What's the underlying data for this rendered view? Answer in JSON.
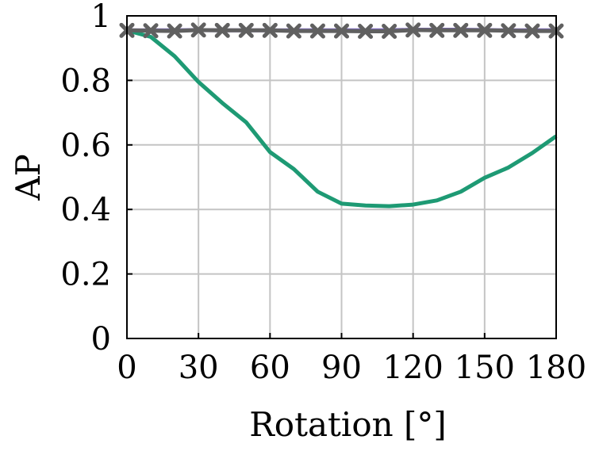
{
  "chart_data": {
    "type": "line",
    "xlabel": "Rotation [°]",
    "ylabel": "AP",
    "xlim": [
      0,
      180
    ],
    "ylim": [
      0,
      1
    ],
    "grid": true,
    "xticks": [
      "0",
      "30",
      "60",
      "90",
      "120",
      "150",
      "180"
    ],
    "yticks": [
      "0",
      "0.2",
      "0.4",
      "0.6",
      "0.8",
      "1"
    ],
    "x": [
      0,
      10,
      20,
      30,
      40,
      50,
      60,
      70,
      80,
      90,
      100,
      110,
      120,
      130,
      140,
      150,
      160,
      170,
      180
    ],
    "series": [
      {
        "color": "#1e9a74",
        "marker": "none",
        "values": [
          0.955,
          0.935,
          0.875,
          0.795,
          0.73,
          0.67,
          0.578,
          0.525,
          0.455,
          0.418,
          0.412,
          0.41,
          0.415,
          0.428,
          0.455,
          0.498,
          0.53,
          0.575,
          0.627
        ]
      },
      {
        "color": "#7b68b8",
        "marker": "none",
        "values": [
          0.955,
          0.955,
          0.955,
          0.956,
          0.955,
          0.955,
          0.955,
          0.955,
          0.955,
          0.955,
          0.955,
          0.955,
          0.957,
          0.957,
          0.957,
          0.956,
          0.955,
          0.955,
          0.955
        ]
      },
      {
        "color": "#606060",
        "marker": "x",
        "values": [
          0.955,
          0.954,
          0.953,
          0.956,
          0.955,
          0.955,
          0.955,
          0.953,
          0.953,
          0.953,
          0.952,
          0.952,
          0.956,
          0.955,
          0.955,
          0.955,
          0.954,
          0.953,
          0.953
        ]
      }
    ]
  }
}
